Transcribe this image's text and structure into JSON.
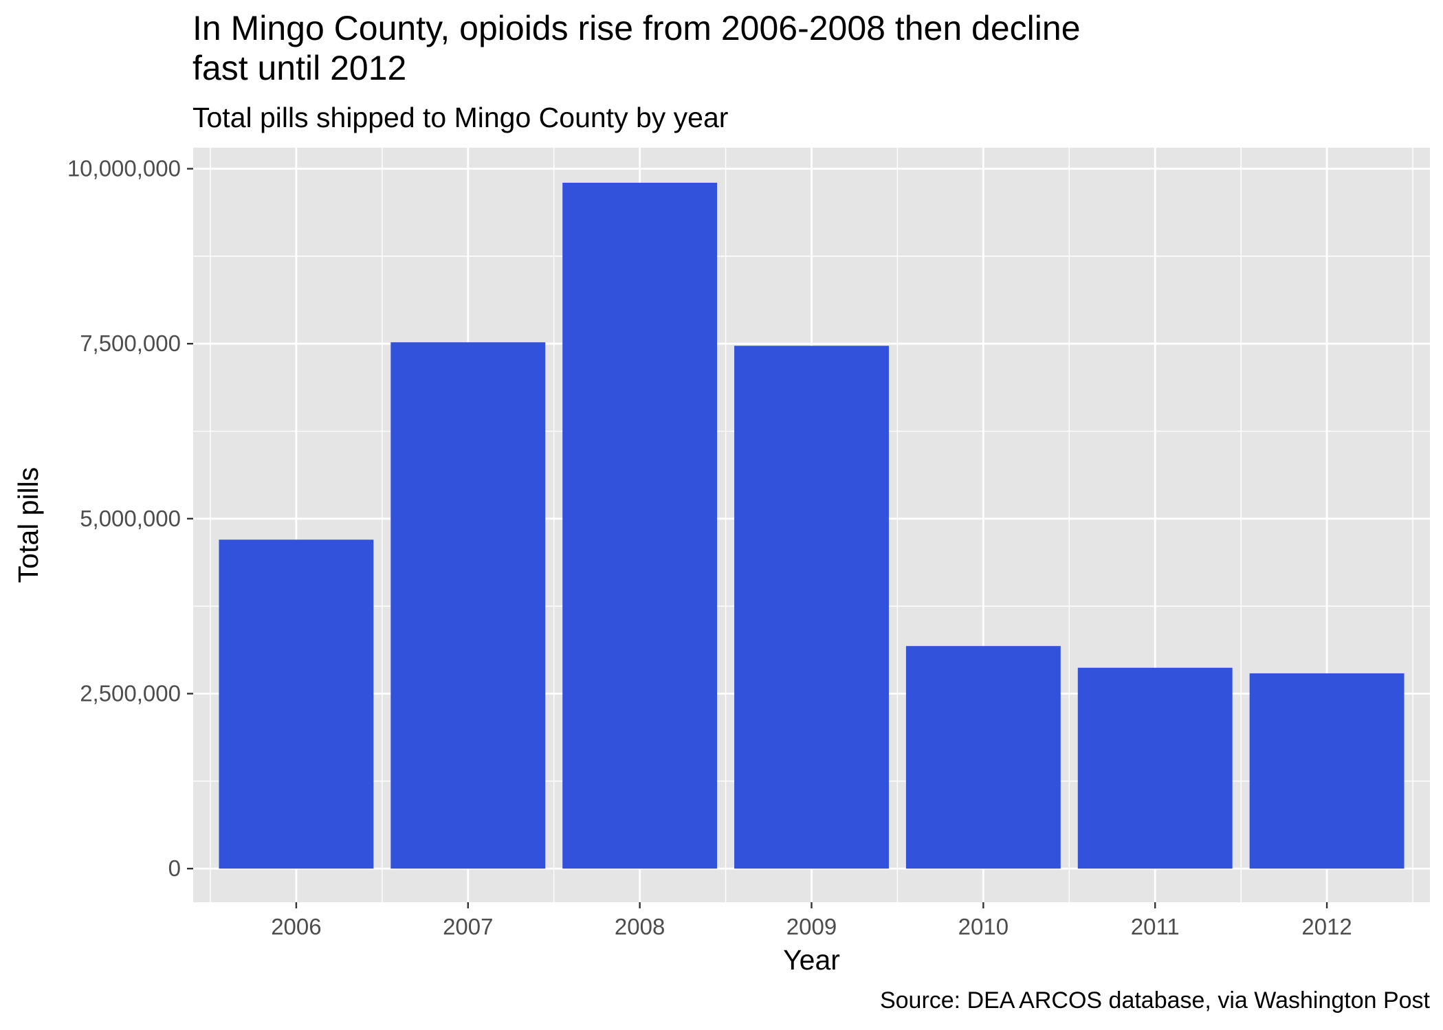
{
  "chart_data": {
    "type": "bar",
    "title": "In Mingo County, opioids rise from 2006-2008 then decline fast until 2012",
    "title_lines": [
      "In Mingo County, opioids rise from 2006-2008 then decline",
      "fast until 2012"
    ],
    "subtitle": "Total pills shipped to Mingo County by year",
    "caption": "Source: DEA ARCOS database, via Washington Post",
    "xlabel": "Year",
    "ylabel": "Total pills",
    "categories": [
      "2006",
      "2007",
      "2008",
      "2009",
      "2010",
      "2011",
      "2012"
    ],
    "values": [
      4700000,
      7520000,
      9800000,
      7470000,
      3180000,
      2870000,
      2790000
    ],
    "ylim": [
      -480000,
      10300000
    ],
    "y_ticks": [
      0,
      2500000,
      5000000,
      7500000,
      10000000
    ],
    "y_tick_labels": [
      "0",
      "2,500,000",
      "5,000,000",
      "7,500,000",
      "10,000,000"
    ],
    "grid": true,
    "bar_color": "#3352DB",
    "panel_background": "#E5E5E5",
    "grid_color": "#FFFFFF"
  }
}
